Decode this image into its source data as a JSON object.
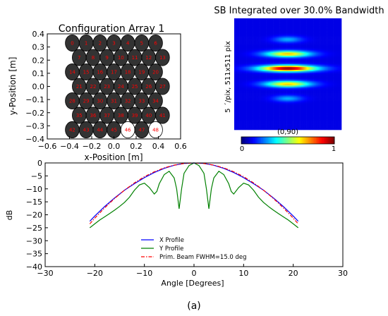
{
  "figure_label": "(a)",
  "colors": {
    "x_profile": "#0000ff",
    "y_profile": "#008000",
    "primary_beam": "#ff0000",
    "disk_filled": "#333333",
    "disk_empty": "#ffffff",
    "disk_index": "#ff0000"
  },
  "chart_data": [
    {
      "type": "scatter",
      "title": "Configuration Array 1",
      "xlabel": "x-Position [m]",
      "ylabel": "y-Position [m]",
      "xlim": [
        -0.6,
        0.6
      ],
      "ylim": [
        -0.4,
        0.4
      ],
      "xticks": [
        "−0.6",
        "−0.4",
        "−0.2",
        "0.0",
        "0.2",
        "0.4",
        "0.6"
      ],
      "yticks": [
        "−0.4",
        "−0.3",
        "−0.2",
        "−0.1",
        "0.0",
        "0.1",
        "0.2",
        "0.3",
        "0.4"
      ],
      "grid": false,
      "rows": [
        {
          "y": 0.33,
          "x": [
            -0.375,
            -0.25,
            -0.125,
            0.0,
            0.125,
            0.25,
            0.375
          ],
          "labels": [
            "0",
            "1",
            "2",
            "3",
            "4",
            "5",
            "6"
          ]
        },
        {
          "y": 0.22,
          "x": [
            -0.3125,
            -0.1875,
            -0.0625,
            0.0625,
            0.1875,
            0.3125,
            0.4375
          ],
          "labels": [
            "7",
            "8",
            "9",
            "10",
            "11",
            "12",
            "13"
          ]
        },
        {
          "y": 0.11,
          "x": [
            -0.375,
            -0.25,
            -0.125,
            0.0,
            0.125,
            0.25,
            0.375
          ],
          "labels": [
            "14",
            "15",
            "16",
            "17",
            "18",
            "19",
            "20"
          ]
        },
        {
          "y": 0.0,
          "x": [
            -0.3125,
            -0.1875,
            -0.0625,
            0.0625,
            0.1875,
            0.3125,
            0.4375
          ],
          "labels": [
            "21",
            "22",
            "23",
            "24",
            "25",
            "26",
            "27"
          ]
        },
        {
          "y": -0.11,
          "x": [
            -0.375,
            -0.25,
            -0.125,
            0.0,
            0.125,
            0.25,
            0.375
          ],
          "labels": [
            "28",
            "29",
            "30",
            "31",
            "32",
            "33",
            "34"
          ]
        },
        {
          "y": -0.22,
          "x": [
            -0.3125,
            -0.1875,
            -0.0625,
            0.0625,
            0.1875,
            0.3125,
            0.4375
          ],
          "labels": [
            "35",
            "36",
            "37",
            "38",
            "39",
            "40",
            "41"
          ]
        },
        {
          "y": -0.33,
          "x": [
            -0.375,
            -0.25,
            -0.125,
            0.0,
            0.125,
            0.25,
            0.375
          ],
          "labels": [
            "42",
            "43",
            "44",
            "45",
            "46",
            "47",
            "48"
          ]
        }
      ],
      "disk_radius_m": 0.0625,
      "empty_elements": [
        "46",
        "48"
      ]
    },
    {
      "type": "heatmap",
      "title": "SB Integrated over 30.0% Bandwidth",
      "ylabel": "5 ´/pix, 511x511 pix",
      "colorbar_label": "(0,90)",
      "colorbar_ticks": [
        "0",
        "1"
      ],
      "colormap": "jet",
      "background_value": 0.1,
      "bands": [
        {
          "y": -0.18,
          "peak": 0.68,
          "width": 0.21
        },
        {
          "y": -0.05,
          "peak": 1.0,
          "width": 0.26
        },
        {
          "y": 0.09,
          "peak": 0.68,
          "width": 0.21
        },
        {
          "y": 0.22,
          "peak": 0.3,
          "width": 0.13
        },
        {
          "y": -0.31,
          "peak": 0.3,
          "width": 0.13
        }
      ]
    },
    {
      "type": "line",
      "xlabel": "Angle [Degrees]",
      "ylabel": "dB",
      "xlim": [
        -30,
        30
      ],
      "ylim": [
        -40,
        0
      ],
      "xticks": [
        "−30",
        "−20",
        "−10",
        "0",
        "10",
        "20",
        "30"
      ],
      "yticks": [
        "0",
        "−5",
        "−10",
        "−15",
        "−20",
        "−25",
        "−30",
        "−35",
        "−40"
      ],
      "grid": false,
      "legend_position": "lower-center",
      "series": [
        {
          "name": "X Profile",
          "style": "solid",
          "x": [
            -21,
            -20,
            -18,
            -16,
            -14,
            -12,
            -10,
            -8,
            -6,
            -4,
            -2,
            0,
            2,
            4,
            6,
            8,
            10,
            12,
            14,
            16,
            18,
            20,
            21
          ],
          "y": [
            -22.5,
            -20.5,
            -16.8,
            -13.5,
            -10.5,
            -8.0,
            -5.7,
            -3.7,
            -2.1,
            -0.9,
            -0.2,
            0,
            -0.2,
            -0.9,
            -2.1,
            -3.7,
            -5.7,
            -8.0,
            -10.5,
            -13.5,
            -16.8,
            -20.5,
            -22.5
          ]
        },
        {
          "name": "Y Profile",
          "style": "solid",
          "x": [
            -21,
            -20,
            -19,
            -18,
            -17,
            -16,
            -15,
            -14,
            -13,
            -12,
            -11,
            -10,
            -9,
            -8,
            -7.5,
            -7,
            -6,
            -5,
            -4,
            -3.5,
            -3,
            -2.5,
            -2,
            -1,
            0,
            1,
            2,
            2.5,
            3,
            3.5,
            4,
            5,
            6,
            7,
            7.5,
            8,
            9,
            10,
            11,
            12,
            13,
            14,
            15,
            16,
            17,
            18,
            19,
            20,
            21
          ],
          "y": [
            -25,
            -23.5,
            -22,
            -20.8,
            -19.5,
            -18.2,
            -16.8,
            -15.2,
            -13.2,
            -10.5,
            -8.5,
            -7.8,
            -9.5,
            -12.0,
            -11.0,
            -8.0,
            -4.5,
            -3.2,
            -5.8,
            -10.0,
            -17.7,
            -10.0,
            -4.0,
            -1.0,
            0,
            -1.0,
            -4.0,
            -10.0,
            -17.7,
            -10.0,
            -5.8,
            -3.2,
            -4.5,
            -8.0,
            -11.0,
            -12.0,
            -9.5,
            -7.8,
            -8.5,
            -10.5,
            -13.2,
            -15.2,
            -16.8,
            -18.2,
            -19.5,
            -20.8,
            -22,
            -23.5,
            -25
          ]
        },
        {
          "name": "Prim. Beam FWHM=15.0 deg",
          "style": "dashdot",
          "x": [
            -21,
            -20,
            -18,
            -16,
            -14,
            -12,
            -10,
            -8,
            -6,
            -4,
            -2,
            0,
            2,
            4,
            6,
            8,
            10,
            12,
            14,
            16,
            18,
            20,
            21
          ],
          "y": [
            -23.5,
            -21.3,
            -17.3,
            -13.7,
            -10.5,
            -7.7,
            -5.3,
            -3.4,
            -1.9,
            -0.85,
            -0.21,
            0,
            -0.21,
            -0.85,
            -1.9,
            -3.4,
            -5.3,
            -7.7,
            -10.5,
            -13.7,
            -17.3,
            -21.3,
            -23.5
          ]
        }
      ]
    }
  ]
}
